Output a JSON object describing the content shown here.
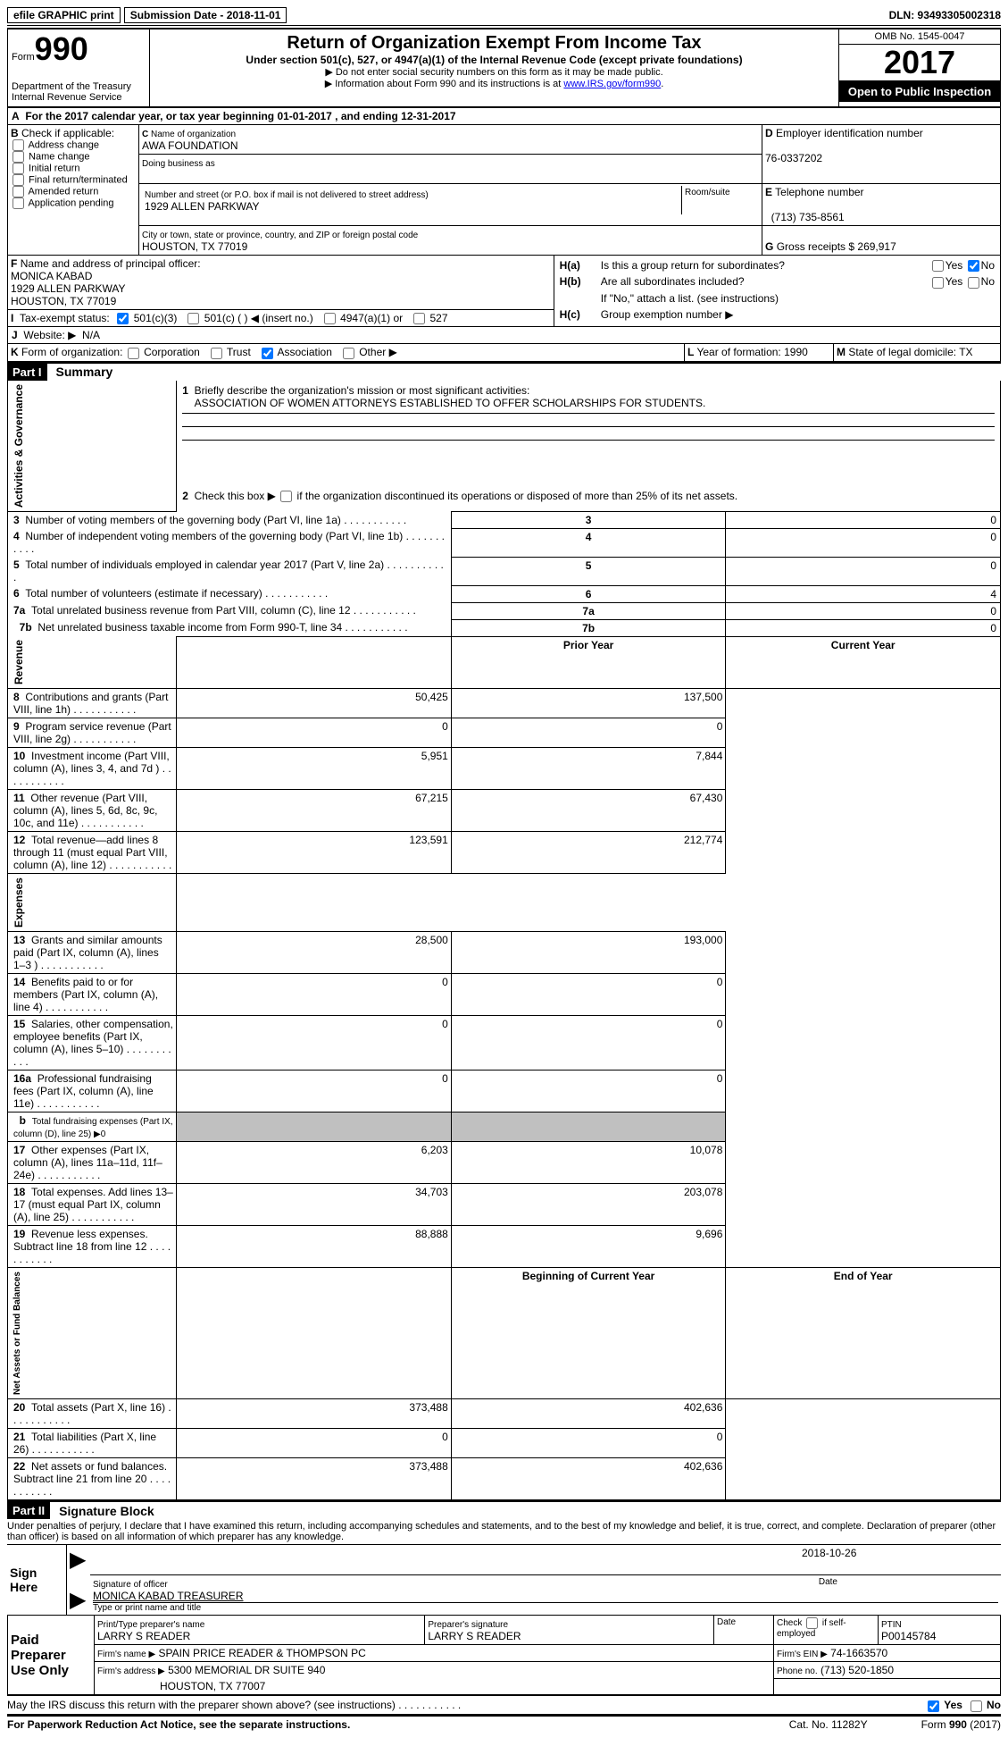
{
  "topbar": {
    "efile_label": "efile GRAPHIC print",
    "submission_label": "Submission Date - 2018-11-01",
    "dln": "DLN: 93493305002318"
  },
  "header": {
    "form_label": "Form",
    "form_number": "990",
    "dept": "Department of the Treasury",
    "irs": "Internal Revenue Service",
    "title": "Return of Organization Exempt From Income Tax",
    "subtitle": "Under section 501(c), 527, or 4947(a)(1) of the Internal Revenue Code (except private foundations)",
    "note1": "▶ Do not enter social security numbers on this form as it may be made public.",
    "note2_prefix": "▶ Information about Form 990 and its instructions is at ",
    "note2_link": "www.IRS.gov/form990",
    "omb": "OMB No. 1545-0047",
    "year": "2017",
    "open": "Open to Public Inspection"
  },
  "sectionA": {
    "line": "For the 2017 calendar year, or tax year beginning 01-01-2017   , and ending 12-31-2017"
  },
  "sectionB": {
    "label": "Check if applicable:",
    "opts": [
      "Address change",
      "Name change",
      "Initial return",
      "Final return/terminated",
      "Amended return",
      "Application pending"
    ]
  },
  "sectionC": {
    "name_label": "Name of organization",
    "name": "AWA FOUNDATION",
    "dba_label": "Doing business as",
    "addr_label": "Number and street (or P.O. box if mail is not delivered to street address)",
    "room_label": "Room/suite",
    "addr": "1929 ALLEN PARKWAY",
    "city_label": "City or town, state or province, country, and ZIP or foreign postal code",
    "city": "HOUSTON, TX  77019"
  },
  "sectionD": {
    "label": "Employer identification number",
    "value": "76-0337202"
  },
  "sectionE": {
    "label": "Telephone number",
    "value": "(713) 735-8561"
  },
  "sectionG": {
    "label": "Gross receipts $",
    "value": "269,917"
  },
  "sectionF": {
    "label": "Name and address of principal officer:",
    "name": "MONICA KABAD",
    "addr1": "1929 ALLEN PARKWAY",
    "addr2": "HOUSTON, TX  77019"
  },
  "sectionH": {
    "ha": "Is this a group return for subordinates?",
    "hb": "Are all subordinates included?",
    "hnote": "If \"No,\" attach a list. (see instructions)",
    "hc": "Group exemption number ▶",
    "yes": "Yes",
    "no": "No"
  },
  "sectionI": {
    "label": "Tax-exempt status:",
    "opt1": "501(c)(3)",
    "opt2": "501(c) (  ) ◀ (insert no.)",
    "opt3": "4947(a)(1) or",
    "opt4": "527"
  },
  "sectionJ": {
    "label": "Website: ▶",
    "value": "N/A"
  },
  "sectionK": {
    "label": "Form of organization:",
    "opts": [
      "Corporation",
      "Trust",
      "Association",
      "Other ▶"
    ],
    "checked_idx": 2
  },
  "sectionL": {
    "label": "Year of formation:",
    "value": "1990"
  },
  "sectionM": {
    "label": "State of legal domicile:",
    "value": "TX"
  },
  "part1": {
    "header": "Part I",
    "title": "Summary",
    "side_labels": [
      "Activities & Governance",
      "Revenue",
      "Expenses",
      "Net Assets or Fund Balances"
    ],
    "line1_label": "Briefly describe the organization's mission or most significant activities:",
    "line1_value": "ASSOCIATION OF WOMEN ATTORNEYS ESTABLISHED TO OFFER SCHOLARSHIPS FOR STUDENTS.",
    "line2": "Check this box ▶     if the organization discontinued its operations or disposed of more than 25% of its net assets.",
    "governance_rows": [
      {
        "num": "3",
        "label": "Number of voting members of the governing body (Part VI, line 1a)",
        "val": "0"
      },
      {
        "num": "4",
        "label": "Number of independent voting members of the governing body (Part VI, line 1b)",
        "val": "0"
      },
      {
        "num": "5",
        "label": "Total number of individuals employed in calendar year 2017 (Part V, line 2a)",
        "val": "0"
      },
      {
        "num": "6",
        "label": "Total number of volunteers (estimate if necessary)",
        "val": "4"
      },
      {
        "num": "7a",
        "label": "Total unrelated business revenue from Part VIII, column (C), line 12",
        "val": "0"
      },
      {
        "num": "7b",
        "label": "Net unrelated business taxable income from Form 990-T, line 34",
        "val": "0",
        "prefix": "b"
      }
    ],
    "col_headers": [
      "Prior Year",
      "Current Year"
    ],
    "revenue_rows": [
      {
        "num": "8",
        "label": "Contributions and grants (Part VIII, line 1h)",
        "py": "50,425",
        "cy": "137,500"
      },
      {
        "num": "9",
        "label": "Program service revenue (Part VIII, line 2g)",
        "py": "0",
        "cy": "0"
      },
      {
        "num": "10",
        "label": "Investment income (Part VIII, column (A), lines 3, 4, and 7d )",
        "py": "5,951",
        "cy": "7,844"
      },
      {
        "num": "11",
        "label": "Other revenue (Part VIII, column (A), lines 5, 6d, 8c, 9c, 10c, and 11e)",
        "py": "67,215",
        "cy": "67,430"
      },
      {
        "num": "12",
        "label": "Total revenue—add lines 8 through 11 (must equal Part VIII, column (A), line 12)",
        "py": "123,591",
        "cy": "212,774"
      }
    ],
    "expense_rows": [
      {
        "num": "13",
        "label": "Grants and similar amounts paid (Part IX, column (A), lines 1–3 )",
        "py": "28,500",
        "cy": "193,000"
      },
      {
        "num": "14",
        "label": "Benefits paid to or for members (Part IX, column (A), line 4)",
        "py": "0",
        "cy": "0"
      },
      {
        "num": "15",
        "label": "Salaries, other compensation, employee benefits (Part IX, column (A), lines 5–10)",
        "py": "0",
        "cy": "0"
      },
      {
        "num": "16a",
        "label": "Professional fundraising fees (Part IX, column (A), line 11e)",
        "py": "0",
        "cy": "0"
      },
      {
        "num": "b",
        "label": "Total fundraising expenses (Part IX, column (D), line 25) ▶0",
        "py": "GRAY",
        "cy": "GRAY"
      },
      {
        "num": "17",
        "label": "Other expenses (Part IX, column (A), lines 11a–11d, 11f–24e)",
        "py": "6,203",
        "cy": "10,078"
      },
      {
        "num": "18",
        "label": "Total expenses. Add lines 13–17 (must equal Part IX, column (A), line 25)",
        "py": "34,703",
        "cy": "203,078"
      },
      {
        "num": "19",
        "label": "Revenue less expenses. Subtract line 18 from line 12",
        "py": "88,888",
        "cy": "9,696"
      }
    ],
    "net_headers": [
      "Beginning of Current Year",
      "End of Year"
    ],
    "net_rows": [
      {
        "num": "20",
        "label": "Total assets (Part X, line 16)",
        "py": "373,488",
        "cy": "402,636"
      },
      {
        "num": "21",
        "label": "Total liabilities (Part X, line 26)",
        "py": "0",
        "cy": "0"
      },
      {
        "num": "22",
        "label": "Net assets or fund balances. Subtract line 21 from line 20",
        "py": "373,488",
        "cy": "402,636"
      }
    ]
  },
  "part2": {
    "header": "Part II",
    "title": "Signature Block",
    "perjury": "Under penalties of perjury, I declare that I have examined this return, including accompanying schedules and statements, and to the best of my knowledge and belief, it is true, correct, and complete. Declaration of preparer (other than officer) is based on all information of which preparer has any knowledge.",
    "sign_here": "Sign Here",
    "sig_label": "Signature of officer",
    "date_label": "Date",
    "sig_date": "2018-10-26",
    "name_title": "MONICA KABAD TREASURER",
    "name_title_label": "Type or print name and title",
    "paid": "Paid Preparer Use Only",
    "preparer_name_label": "Print/Type preparer's name",
    "preparer_name": "LARRY S READER",
    "preparer_sig_label": "Preparer's signature",
    "preparer_sig": "LARRY S READER",
    "check_label": "Check      if self-employed",
    "ptin_label": "PTIN",
    "ptin": "P00145784",
    "firm_name_label": "Firm's name    ▶",
    "firm_name": "SPAIN PRICE READER & THOMPSON PC",
    "firm_ein_label": "Firm's EIN ▶",
    "firm_ein": "74-1663570",
    "firm_addr_label": "Firm's address ▶",
    "firm_addr1": "5300 MEMORIAL DR SUITE 940",
    "firm_addr2": "HOUSTON, TX  77007",
    "phone_label": "Phone no.",
    "phone": "(713) 520-1850",
    "discuss": "May the IRS discuss this return with the preparer shown above? (see instructions)",
    "yes": "Yes",
    "no": "No"
  },
  "footer": {
    "paperwork": "For Paperwork Reduction Act Notice, see the separate instructions.",
    "cat": "Cat. No. 11282Y",
    "form": "Form 990 (2017)"
  }
}
